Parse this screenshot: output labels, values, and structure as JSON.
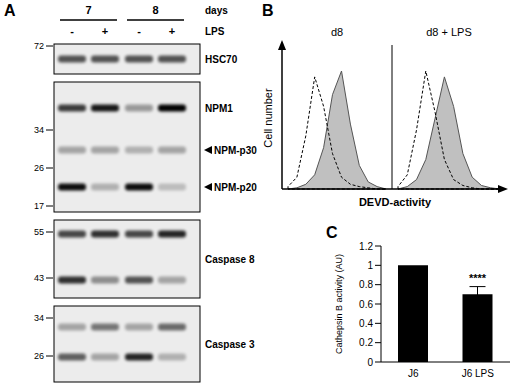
{
  "panel_a": {
    "letter": "A",
    "group_title": "days",
    "groups": [
      {
        "label": "7",
        "lanes": 2
      },
      {
        "label": "8",
        "lanes": 2
      }
    ],
    "treatment": {
      "label": "LPS",
      "lanes": [
        "-",
        "+",
        "-",
        "+"
      ]
    },
    "blots": [
      {
        "label": "HSC70",
        "markers": [
          72
        ],
        "bands": [
          {
            "intensity": [
              0.65,
              0.65,
              0.65,
              0.65
            ]
          }
        ]
      },
      {
        "markers": [
          34,
          26,
          17
        ],
        "bands": [
          {
            "label": "NPM1",
            "intensity": [
              0.75,
              0.9,
              0.35,
              1.0
            ]
          },
          {
            "label": "NPM-p30",
            "arrow": true,
            "intensity": [
              0.3,
              0.3,
              0.25,
              0.3
            ]
          },
          {
            "label": "NPM-p20",
            "arrow": true,
            "intensity": [
              0.95,
              0.25,
              0.95,
              0.2
            ]
          }
        ]
      },
      {
        "label": "Caspase 8",
        "markers": [
          55,
          43
        ],
        "bands": [
          {
            "intensity": [
              0.7,
              0.8,
              0.7,
              0.85
            ]
          },
          {
            "intensity": [
              0.8,
              0.4,
              0.65,
              0.3
            ]
          }
        ]
      },
      {
        "label": "Caspase 3",
        "markers": [
          34,
          26
        ],
        "bands": [
          {
            "intensity": [
              0.3,
              0.5,
              0.3,
              0.55
            ]
          },
          {
            "intensity": [
              0.6,
              0.3,
              0.85,
              0.25
            ]
          }
        ]
      }
    ]
  },
  "panel_b": {
    "letter": "B",
    "ylabel": "Cell number",
    "xlabel": "DEVD-activity",
    "histograms": [
      {
        "label": "d8",
        "control": [
          2,
          10,
          45,
          95,
          70,
          30,
          10,
          4,
          2,
          1,
          0,
          0
        ],
        "treated": [
          0,
          1,
          4,
          12,
          35,
          80,
          100,
          55,
          20,
          6,
          2,
          0
        ]
      },
      {
        "label": "d8 + LPS",
        "control": [
          2,
          12,
          50,
          100,
          65,
          25,
          8,
          3,
          1,
          0,
          0,
          0
        ],
        "treated": [
          0,
          2,
          8,
          25,
          60,
          95,
          70,
          30,
          10,
          3,
          1,
          0
        ]
      }
    ],
    "color": "#c0c0c0"
  },
  "panel_c": {
    "letter": "C"
  },
  "chart_data": {
    "type": "bar",
    "categories": [
      "J6",
      "J6 LPS"
    ],
    "values": [
      1,
      0.7
    ],
    "errors": [
      null,
      0.08
    ],
    "annotations": [
      null,
      "****"
    ],
    "color": "#000000",
    "ylabel": "Cathepsin B activity (AU)",
    "ylim": [
      0,
      1.2
    ],
    "yticks": [
      0,
      0.2,
      0.4,
      0.6,
      0.8,
      1,
      1.2
    ],
    "grid": false
  }
}
